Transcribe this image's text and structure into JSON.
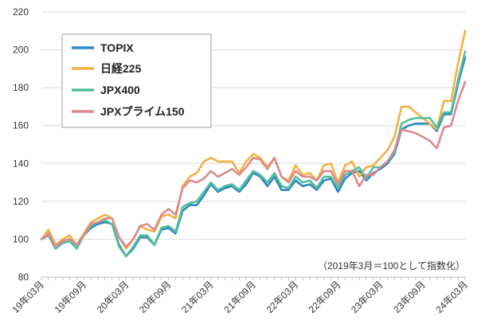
{
  "chart_data": {
    "type": "line",
    "ylim": [
      80,
      220
    ],
    "yticks": [
      80,
      100,
      120,
      140,
      160,
      180,
      200,
      220
    ],
    "grid": "horizontal",
    "legend_position": "top-left",
    "annotation": "（2019年3月＝100として指数化）",
    "x": [
      "19年03月",
      "19年04月",
      "19年05月",
      "19年06月",
      "19年07月",
      "19年08月",
      "19年09月",
      "19年10月",
      "19年11月",
      "19年12月",
      "20年01月",
      "20年02月",
      "20年03月",
      "20年04月",
      "20年05月",
      "20年06月",
      "20年07月",
      "20年08月",
      "20年09月",
      "20年10月",
      "20年11月",
      "20年12月",
      "21年01月",
      "21年02月",
      "21年03月",
      "21年04月",
      "21年05月",
      "21年06月",
      "21年07月",
      "21年08月",
      "21年09月",
      "21年10月",
      "21年11月",
      "21年12月",
      "22年01月",
      "22年02月",
      "22年03月",
      "22年04月",
      "22年05月",
      "22年06月",
      "22年07月",
      "22年08月",
      "22年09月",
      "22年10月",
      "22年11月",
      "22年12月",
      "23年01月",
      "23年02月",
      "23年03月",
      "23年04月",
      "23年05月",
      "23年06月",
      "23年07月",
      "23年08月",
      "23年09月",
      "23年10月",
      "23年11月",
      "23年12月",
      "24年01月",
      "24年02月",
      "24年03月"
    ],
    "xtick_labels": [
      "19年03月",
      "19年09月",
      "20年03月",
      "20年09月",
      "21年03月",
      "21年09月",
      "22年03月",
      "22年09月",
      "23年03月",
      "23年09月",
      "24年03月"
    ],
    "series": [
      {
        "name": "TOPIX",
        "color": "#2e86c1",
        "values": [
          100,
          102,
          95,
          98,
          99,
          95,
          102,
          106,
          108,
          109,
          108,
          97,
          91,
          95,
          101,
          101,
          97,
          105,
          106,
          103,
          115,
          118,
          118,
          123,
          129,
          125,
          127,
          128,
          125,
          129,
          135,
          133,
          128,
          133,
          126,
          126,
          131,
          128,
          129,
          126,
          131,
          132,
          125,
          132,
          135,
          136,
          131,
          135,
          137,
          140,
          145,
          158,
          160,
          161,
          161,
          161,
          157,
          166,
          166,
          182,
          196
        ]
      },
      {
        "name": "日経225",
        "color": "#f5b041",
        "values": [
          100,
          105,
          97,
          100,
          102,
          97,
          103,
          109,
          111,
          113,
          111,
          101,
          95,
          100,
          107,
          105,
          104,
          112,
          113,
          111,
          128,
          133,
          135,
          141,
          143,
          141,
          141,
          141,
          135,
          141,
          145,
          143,
          138,
          143,
          133,
          131,
          139,
          134,
          135,
          131,
          139,
          140,
          130,
          139,
          141,
          133,
          138,
          139,
          143,
          147,
          154,
          170,
          170,
          167,
          164,
          161,
          158,
          173,
          173,
          193,
          210
        ]
      },
      {
        "name": "JPX400",
        "color": "#52be9e",
        "values": [
          100,
          102,
          95,
          98,
          99,
          95,
          102,
          107,
          109,
          110,
          108,
          96,
          91,
          96,
          102,
          102,
          97,
          106,
          107,
          104,
          117,
          119,
          120,
          125,
          130,
          126,
          128,
          129,
          126,
          131,
          136,
          134,
          130,
          135,
          128,
          127,
          133,
          130,
          131,
          127,
          133,
          133,
          127,
          134,
          136,
          138,
          132,
          138,
          138,
          141,
          146,
          161,
          163,
          164,
          164,
          164,
          159,
          167,
          167,
          184,
          199
        ]
      },
      {
        "name": "JPXプライム150",
        "color": "#d98a8e",
        "values": [
          100,
          103,
          96,
          99,
          100,
          97,
          102,
          108,
          109,
          111,
          111,
          101,
          96,
          100,
          107,
          108,
          105,
          113,
          116,
          113,
          127,
          131,
          130,
          132,
          136,
          133,
          135,
          137,
          134,
          138,
          143,
          142,
          137,
          143,
          133,
          130,
          136,
          133,
          133,
          131,
          136,
          136,
          129,
          136,
          136,
          128,
          134,
          134,
          138,
          141,
          147,
          158,
          157,
          156,
          154,
          152,
          148,
          159,
          160,
          173,
          183
        ]
      }
    ]
  }
}
